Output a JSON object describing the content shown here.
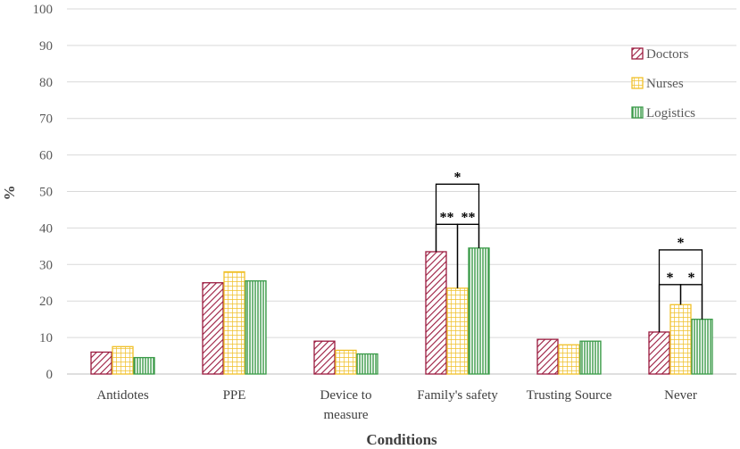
{
  "chart_data": {
    "type": "bar",
    "title": "",
    "xlabel": "Conditions",
    "ylabel": "%",
    "ylim": [
      0,
      100
    ],
    "yticks": [
      0,
      10,
      20,
      30,
      40,
      50,
      60,
      70,
      80,
      90,
      100
    ],
    "categories": [
      [
        "Antidotes"
      ],
      [
        "PPE"
      ],
      [
        "Device to",
        "measure"
      ],
      [
        "Family's safety"
      ],
      [
        "Trusting Source"
      ],
      [
        "Never"
      ]
    ],
    "series": [
      {
        "name": "Doctors",
        "color": "#9b1b3f",
        "pattern": "diagonal",
        "values": [
          6,
          25,
          9,
          33.5,
          9.5,
          11.5
        ]
      },
      {
        "name": "Nurses",
        "color": "#f0c028",
        "pattern": "grid",
        "values": [
          7.5,
          28,
          6.5,
          23.5,
          8,
          19
        ]
      },
      {
        "name": "Logistics",
        "color": "#3a9a48",
        "pattern": "vertical",
        "values": [
          4.5,
          25.5,
          5.5,
          34.5,
          9,
          15
        ]
      }
    ],
    "legend_position": "top-right",
    "annotations": [
      {
        "category": 3,
        "from": 0,
        "to": 1,
        "level": 41,
        "label": "**"
      },
      {
        "category": 3,
        "from": 1,
        "to": 2,
        "level": 41,
        "label": "**"
      },
      {
        "category": 3,
        "from": 0,
        "to": 2,
        "level": 52,
        "label": "*"
      },
      {
        "category": 5,
        "from": 0,
        "to": 1,
        "level": 24.5,
        "label": "*"
      },
      {
        "category": 5,
        "from": 1,
        "to": 2,
        "level": 24.5,
        "label": "*"
      },
      {
        "category": 5,
        "from": 0,
        "to": 2,
        "level": 34,
        "label": "*"
      }
    ]
  }
}
